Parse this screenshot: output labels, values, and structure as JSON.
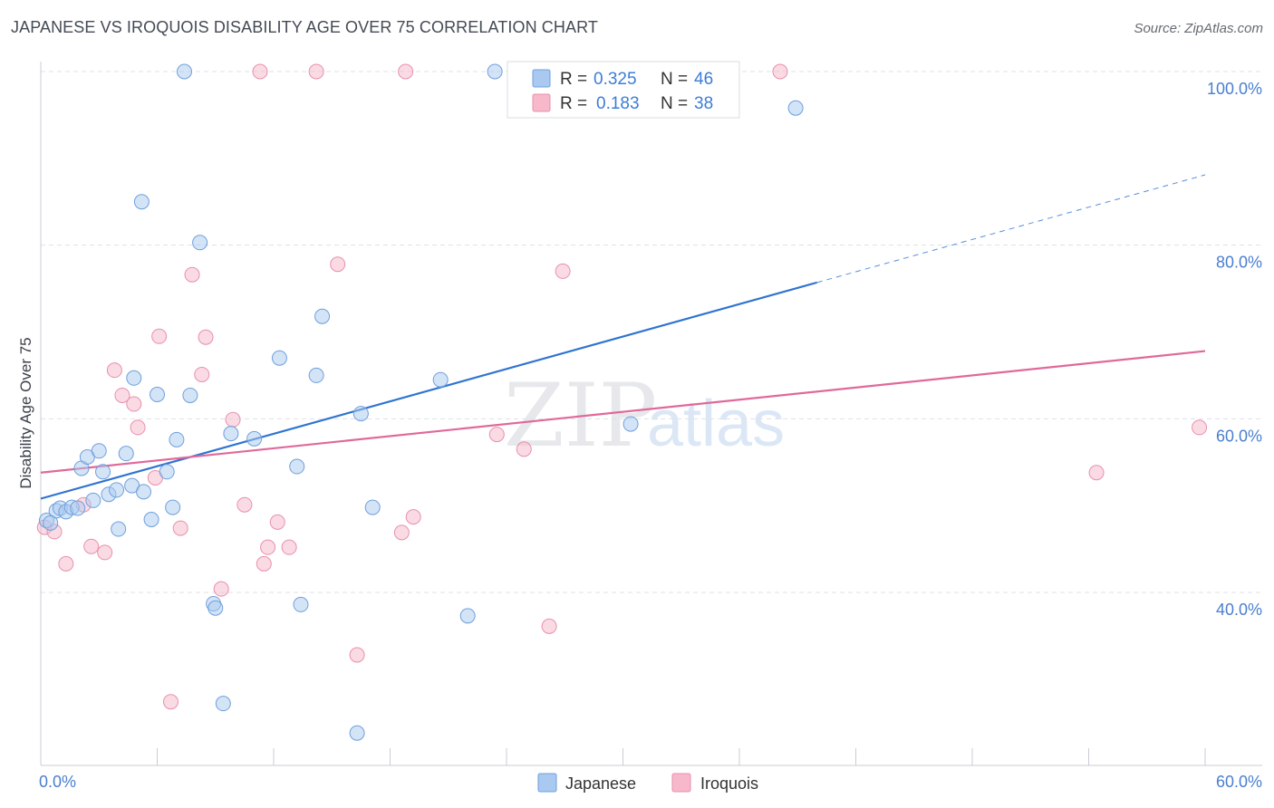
{
  "title": "JAPANESE VS IROQUOIS DISABILITY AGE OVER 75 CORRELATION CHART",
  "source": "Source: ZipAtlas.com",
  "watermark": {
    "zip": "ZIP",
    "atlas": "atlas"
  },
  "colors": {
    "japanese_fill": "#a9c9f0",
    "japanese_stroke": "#6f9fdc",
    "japanese_line": "#2f74d0",
    "iroquois_fill": "#f6b8ca",
    "iroquois_stroke": "#e890ab",
    "iroquois_line": "#e0699a",
    "grid": "#dde1e7",
    "tick_label": "#4a7fcf"
  },
  "legend": {
    "rows": [
      {
        "r_label": "R = ",
        "r_value": "0.325",
        "n_label": "N = ",
        "n_value": "46",
        "series": "japanese"
      },
      {
        "r_label": "R = ",
        "r_value": "0.183",
        "n_label": "N = ",
        "n_value": "38",
        "series": "iroquois"
      }
    ]
  },
  "bottom_legend": [
    "Japanese",
    "Iroquois"
  ],
  "chart_data": {
    "type": "scatter",
    "title": "JAPANESE VS IROQUOIS DISABILITY AGE OVER 75 CORRELATION CHART",
    "xlabel": "",
    "ylabel": "Disability Age Over 75",
    "xlim": [
      0,
      60
    ],
    "ylim": [
      20,
      102
    ],
    "x_tick_labels": [
      "0.0%",
      "60.0%"
    ],
    "y_ticks": [
      40,
      60,
      80,
      100
    ],
    "y_tick_labels": [
      "40.0%",
      "60.0%",
      "80.0%",
      "100.0%"
    ],
    "grid": true,
    "legend_position": "top-center",
    "series": [
      {
        "name": "Japanese",
        "points": [
          [
            0.3,
            48.3
          ],
          [
            0.8,
            49.4
          ],
          [
            1.0,
            49.7
          ],
          [
            1.3,
            49.3
          ],
          [
            1.6,
            49.8
          ],
          [
            2.1,
            54.3
          ],
          [
            2.4,
            55.6
          ],
          [
            2.7,
            50.6
          ],
          [
            3.0,
            56.3
          ],
          [
            3.2,
            53.9
          ],
          [
            3.5,
            51.3
          ],
          [
            3.9,
            51.8
          ],
          [
            4.0,
            47.3
          ],
          [
            4.4,
            56.0
          ],
          [
            4.7,
            52.3
          ],
          [
            4.8,
            64.7
          ],
          [
            5.2,
            85.0
          ],
          [
            5.3,
            51.6
          ],
          [
            5.7,
            48.4
          ],
          [
            6.0,
            62.8
          ],
          [
            6.5,
            53.9
          ],
          [
            6.8,
            49.8
          ],
          [
            7.0,
            57.6
          ],
          [
            7.4,
            100.0
          ],
          [
            7.7,
            62.7
          ],
          [
            8.2,
            80.3
          ],
          [
            8.9,
            38.7
          ],
          [
            9.0,
            38.2
          ],
          [
            9.4,
            27.2
          ],
          [
            9.8,
            58.3
          ],
          [
            11.0,
            57.7
          ],
          [
            12.3,
            67.0
          ],
          [
            13.2,
            54.5
          ],
          [
            13.4,
            38.6
          ],
          [
            14.2,
            65.0
          ],
          [
            14.5,
            71.8
          ],
          [
            16.3,
            23.8
          ],
          [
            16.5,
            60.6
          ],
          [
            17.1,
            49.8
          ],
          [
            20.6,
            64.5
          ],
          [
            22.0,
            37.3
          ],
          [
            23.4,
            100.0
          ],
          [
            30.4,
            59.4
          ],
          [
            38.9,
            95.8
          ],
          [
            0.5,
            48.0
          ],
          [
            1.9,
            49.7
          ]
        ],
        "trend": {
          "x": [
            0,
            40
          ],
          "y": [
            50.8,
            75.7
          ],
          "dashed_to": [
            60,
            88.1
          ]
        }
      },
      {
        "name": "Iroquois",
        "points": [
          [
            0.2,
            47.5
          ],
          [
            0.7,
            47.0
          ],
          [
            1.3,
            43.3
          ],
          [
            2.2,
            50.1
          ],
          [
            2.6,
            45.3
          ],
          [
            3.3,
            44.6
          ],
          [
            3.8,
            65.6
          ],
          [
            4.2,
            62.7
          ],
          [
            4.8,
            61.7
          ],
          [
            5.0,
            59.0
          ],
          [
            5.9,
            53.2
          ],
          [
            6.1,
            69.5
          ],
          [
            6.7,
            27.4
          ],
          [
            7.2,
            47.4
          ],
          [
            7.8,
            76.6
          ],
          [
            8.3,
            65.1
          ],
          [
            8.5,
            69.4
          ],
          [
            9.3,
            40.4
          ],
          [
            9.9,
            59.9
          ],
          [
            10.5,
            50.1
          ],
          [
            11.5,
            43.3
          ],
          [
            11.7,
            45.2
          ],
          [
            12.2,
            48.1
          ],
          [
            12.8,
            45.2
          ],
          [
            15.3,
            77.8
          ],
          [
            16.3,
            32.8
          ],
          [
            18.8,
            100.0
          ],
          [
            19.2,
            48.7
          ],
          [
            18.6,
            46.9
          ],
          [
            23.5,
            58.2
          ],
          [
            24.9,
            56.5
          ],
          [
            26.2,
            36.1
          ],
          [
            26.9,
            77.0
          ],
          [
            38.1,
            100.0
          ],
          [
            54.4,
            53.8
          ],
          [
            59.7,
            59.0
          ],
          [
            11.3,
            100.0
          ],
          [
            14.2,
            100.0
          ]
        ],
        "trend": {
          "x": [
            0,
            60
          ],
          "y": [
            53.8,
            67.8
          ]
        }
      }
    ]
  }
}
